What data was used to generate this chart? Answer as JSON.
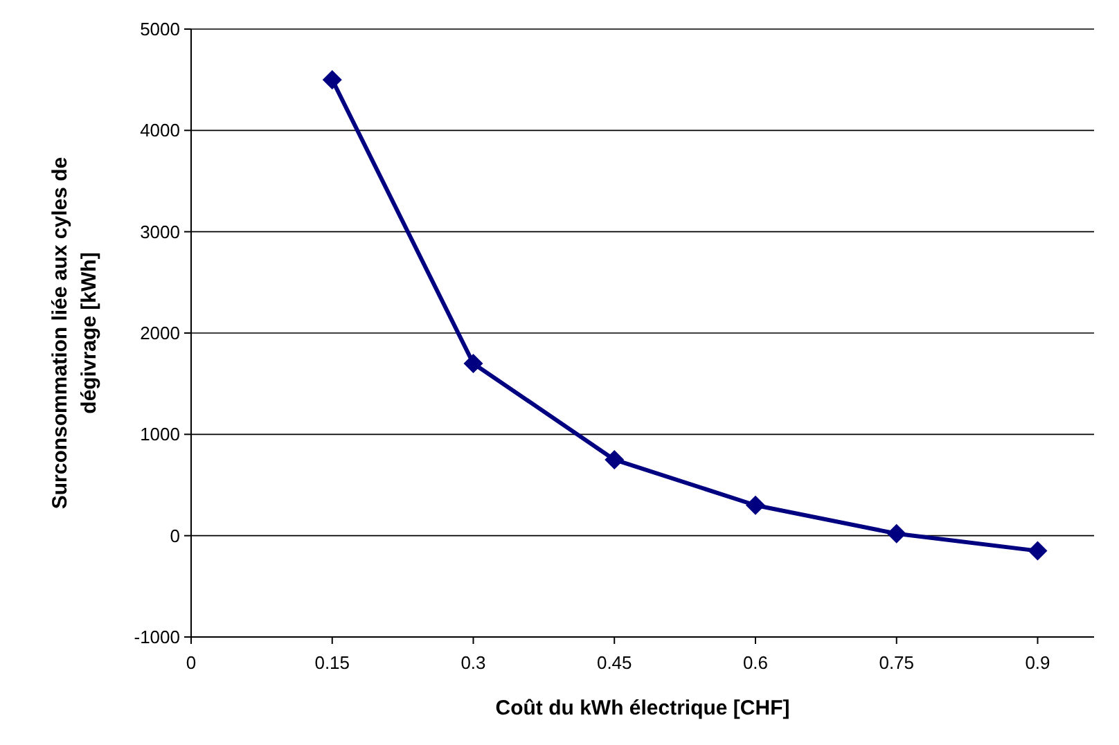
{
  "chart_data": {
    "type": "line",
    "xlabel": "Coût du kWh électrique [CHF]",
    "ylabel": "Surconsommation liée aux cyles de dégivrage [kWh]",
    "x": [
      0.15,
      0.3,
      0.45,
      0.6,
      0.75,
      0.9
    ],
    "series": [
      {
        "color": "#000080",
        "values": [
          4500,
          1700,
          750,
          300,
          20,
          -150
        ]
      }
    ],
    "xlim": [
      0,
      0.96
    ],
    "xticks": [
      0,
      0.15,
      0.3,
      0.45,
      0.6,
      0.75,
      0.9
    ],
    "ylim": [
      -1000,
      5000
    ],
    "yticks": [
      -1000,
      0,
      1000,
      2000,
      3000,
      4000,
      5000
    ],
    "grid": "y",
    "marker": "diamond",
    "line_style": "solid"
  }
}
